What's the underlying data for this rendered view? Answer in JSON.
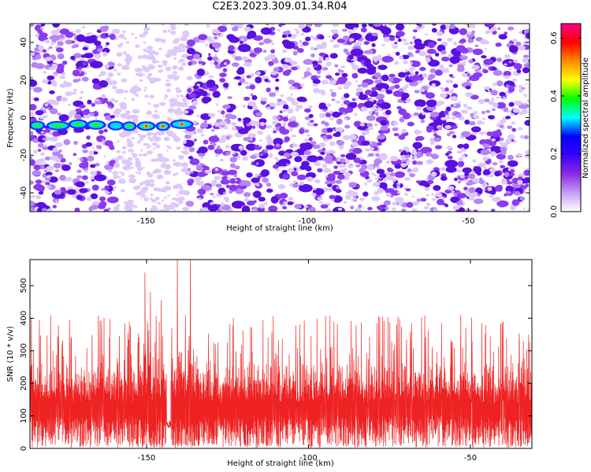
{
  "title": "C2E3.2023.309.01.34.R04",
  "colors": {
    "snr_line": "#ee2222",
    "background_speckle": "#7a16ee",
    "colorbar_stops": [
      "#ffffff",
      "#c79cf5",
      "#8a2be2",
      "#3b00ff",
      "#0000ff",
      "#00ffff",
      "#00ff00",
      "#ffff00",
      "#ff8800",
      "#ff0000",
      "#ff0088"
    ]
  },
  "chart_data": [
    {
      "type": "heatmap",
      "title": "",
      "xlabel": "Height of straight line (km)",
      "ylabel": "Frequency (Hz)",
      "xlim": [
        -186,
        -31
      ],
      "ylim": [
        -50,
        50
      ],
      "x_ticks": [
        -150,
        -100,
        -50
      ],
      "x_tick_labels": [
        "-150",
        "-100",
        "-50"
      ],
      "y_ticks": [
        -40,
        -20,
        0,
        20,
        40
      ],
      "y_tick_labels": [
        "-40",
        "-20",
        "0",
        "20",
        "40"
      ],
      "signal_band": {
        "frequency_hz": -4,
        "x_range_km": [
          -186,
          -137
        ],
        "peak_amplitude": 0.6
      },
      "colorbar": {
        "label": "Normalized spectral amplitude",
        "range": [
          0,
          0.65
        ],
        "ticks": [
          0.0,
          0.2,
          0.4,
          0.6
        ],
        "tick_labels": [
          "0.0",
          "0.2",
          "0.4",
          "0.6"
        ]
      }
    },
    {
      "type": "line",
      "title": "",
      "xlabel": "Height of straight line (km)",
      "ylabel": "SNR (10 * v/v)",
      "xlim": [
        -186,
        -31
      ],
      "ylim": [
        0,
        580
      ],
      "x_ticks": [
        -150,
        -100,
        -50
      ],
      "x_tick_labels": [
        "-150",
        "-100",
        "-50"
      ],
      "y_ticks": [
        0,
        100,
        200,
        300,
        400,
        500
      ],
      "y_tick_labels": [
        "0",
        "100",
        "200",
        "300",
        "400",
        "500"
      ],
      "noise_baseline": 120,
      "peaks": [
        {
          "x": -150.5,
          "y": 540
        },
        {
          "x": -148.8,
          "y": 480
        },
        {
          "x": -145.5,
          "y": 455
        },
        {
          "x": -140.5,
          "y": 580
        },
        {
          "x": -136.5,
          "y": 580
        }
      ]
    }
  ]
}
